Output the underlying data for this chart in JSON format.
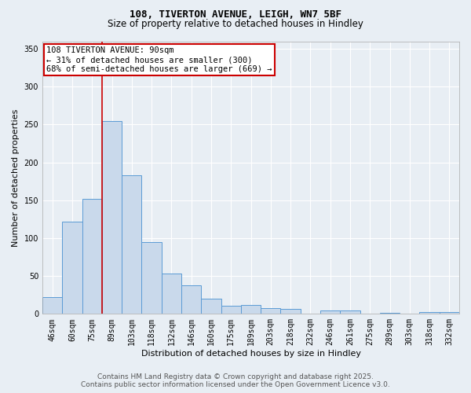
{
  "title_line1": "108, TIVERTON AVENUE, LEIGH, WN7 5BF",
  "title_line2": "Size of property relative to detached houses in Hindley",
  "xlabel": "Distribution of detached houses by size in Hindley",
  "ylabel": "Number of detached properties",
  "categories": [
    "46sqm",
    "60sqm",
    "75sqm",
    "89sqm",
    "103sqm",
    "118sqm",
    "132sqm",
    "146sqm",
    "160sqm",
    "175sqm",
    "189sqm",
    "203sqm",
    "218sqm",
    "232sqm",
    "246sqm",
    "261sqm",
    "275sqm",
    "289sqm",
    "303sqm",
    "318sqm",
    "332sqm"
  ],
  "values": [
    22,
    122,
    152,
    255,
    183,
    95,
    53,
    38,
    20,
    11,
    12,
    8,
    7,
    0,
    5,
    4,
    0,
    1,
    0,
    2,
    2
  ],
  "bar_color": "#c9d9eb",
  "bar_edge_color": "#5b9bd5",
  "red_line_x": 2.5,
  "ylim": [
    0,
    360
  ],
  "yticks": [
    0,
    50,
    100,
    150,
    200,
    250,
    300,
    350
  ],
  "annotation_text": "108 TIVERTON AVENUE: 90sqm\n← 31% of detached houses are smaller (300)\n68% of semi-detached houses are larger (669) →",
  "annotation_box_color": "#ffffff",
  "annotation_box_edge": "#cc0000",
  "footer_line1": "Contains HM Land Registry data © Crown copyright and database right 2025.",
  "footer_line2": "Contains public sector information licensed under the Open Government Licence v3.0.",
  "background_color": "#e8eef4",
  "grid_color": "#ffffff",
  "red_line_color": "#cc0000",
  "title1_fontsize": 9,
  "title2_fontsize": 8.5,
  "ylabel_fontsize": 8,
  "xlabel_fontsize": 8,
  "tick_fontsize": 7,
  "ann_fontsize": 7.5,
  "footer_fontsize": 6.5
}
